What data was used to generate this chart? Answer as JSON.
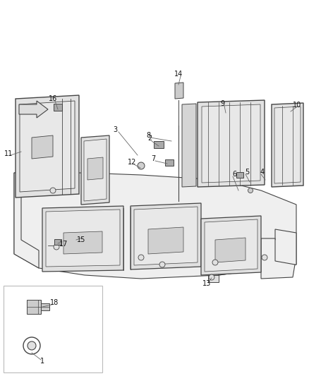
{
  "bg_color": "#ffffff",
  "line_color": "#444444",
  "figsize": [
    4.38,
    5.33
  ],
  "dpi": 100,
  "panel_face": "#e8e8e8",
  "panel_edge": "#444444",
  "floor_face": "#f0f0f0",
  "floor_edge": "#444444"
}
